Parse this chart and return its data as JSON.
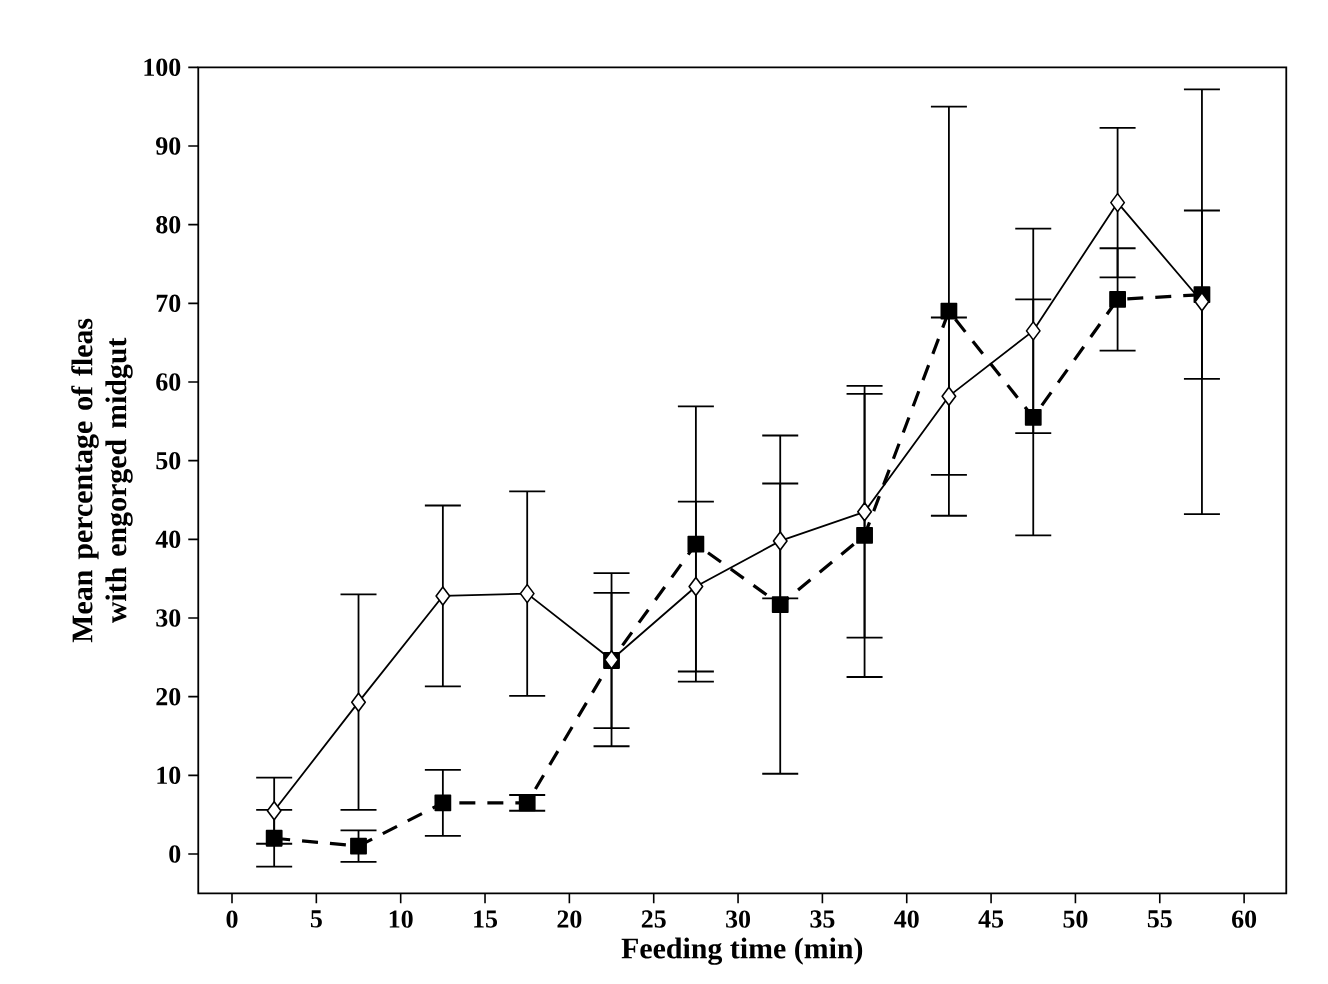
{
  "chart_data": {
    "type": "line",
    "xlabel": "Feeding time (min)",
    "ylabel": "Mean percentage of fleas with engorged midgut",
    "x": [
      2.5,
      7.5,
      12.5,
      17.5,
      22.5,
      27.5,
      32.5,
      37.5,
      42.5,
      47.5,
      52.5,
      57.5
    ],
    "series": [
      {
        "color": "#000000",
        "marker": "square",
        "line_style": "dashed",
        "values": [
          2,
          1,
          6.5,
          6.5,
          24.6,
          39.4,
          31.7,
          40.5,
          69,
          55.5,
          70.5,
          71.1
        ],
        "errors": [
          3.6,
          2,
          4.2,
          1,
          8.6,
          17.5,
          21.5,
          18,
          26,
          15,
          6.5,
          10.7
        ]
      },
      {
        "color": "#000000",
        "marker": "diamond",
        "line_style": "solid",
        "values": [
          5.5,
          19.3,
          32.8,
          33.1,
          24.7,
          34,
          39.8,
          43.5,
          58.2,
          66.5,
          82.8,
          70.2
        ],
        "errors": [
          4.2,
          13.7,
          11.5,
          13,
          11,
          10.8,
          7.3,
          16,
          10,
          13,
          9.5,
          27
        ]
      }
    ],
    "xlim": [
      -2,
      62.5
    ],
    "ylim": [
      -5,
      100
    ],
    "xticks": [
      0,
      5,
      10,
      15,
      20,
      25,
      30,
      35,
      40,
      45,
      50,
      55,
      60
    ],
    "yticks": [
      0,
      10,
      20,
      30,
      40,
      50,
      60,
      70,
      80,
      90,
      100
    ],
    "grid": false
  }
}
